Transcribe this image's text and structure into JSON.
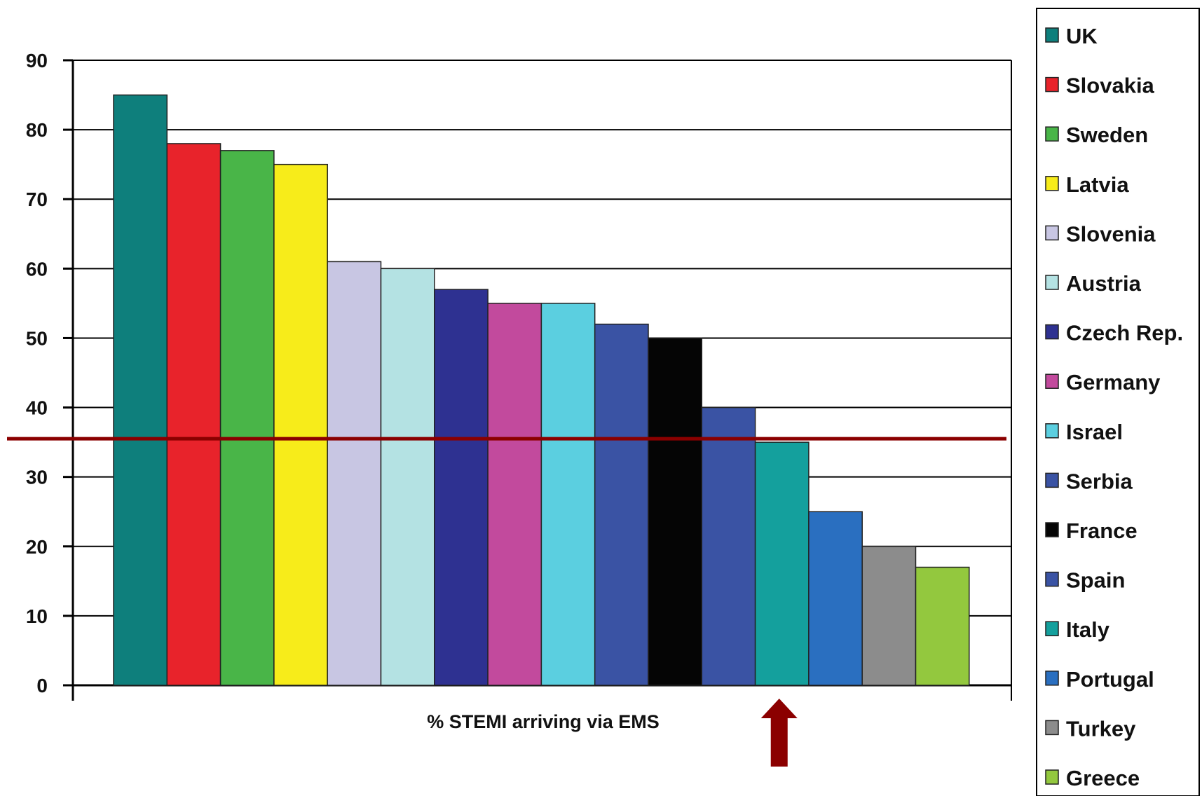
{
  "chart_data": {
    "type": "bar",
    "xlabel": "% STEMI arriving via EMS",
    "ylabel": "",
    "ylim": [
      0,
      90
    ],
    "yticks": [
      0,
      10,
      20,
      30,
      40,
      50,
      60,
      70,
      80,
      90
    ],
    "grid": true,
    "legend_position": "right",
    "categories": [
      "UK",
      "Slovakia",
      "Sweden",
      "Latvia",
      "Slovenia",
      "Austria",
      "Czech Rep.",
      "Germany",
      "Israel",
      "Serbia",
      "France",
      "Spain",
      "Italy",
      "Portugal",
      "Turkey",
      "Greece"
    ],
    "values": [
      85,
      78,
      77,
      75,
      61,
      60,
      57,
      55,
      55,
      52,
      50,
      40,
      35,
      25,
      20,
      17
    ],
    "colors": [
      "#0e7f7c",
      "#e8232b",
      "#49b548",
      "#f7ec1a",
      "#c8c6e3",
      "#b4e2e3",
      "#2e3191",
      "#c24a9d",
      "#5bcfe0",
      "#3a53a4",
      "#050505",
      "#3a53a4",
      "#14a09d",
      "#2a6fc0",
      "#8c8c8c",
      "#93c83e"
    ],
    "reference_line": {
      "value": 35.5,
      "color": "#8b0000"
    },
    "arrow": {
      "category": "Italy",
      "color": "#8b0000"
    }
  }
}
